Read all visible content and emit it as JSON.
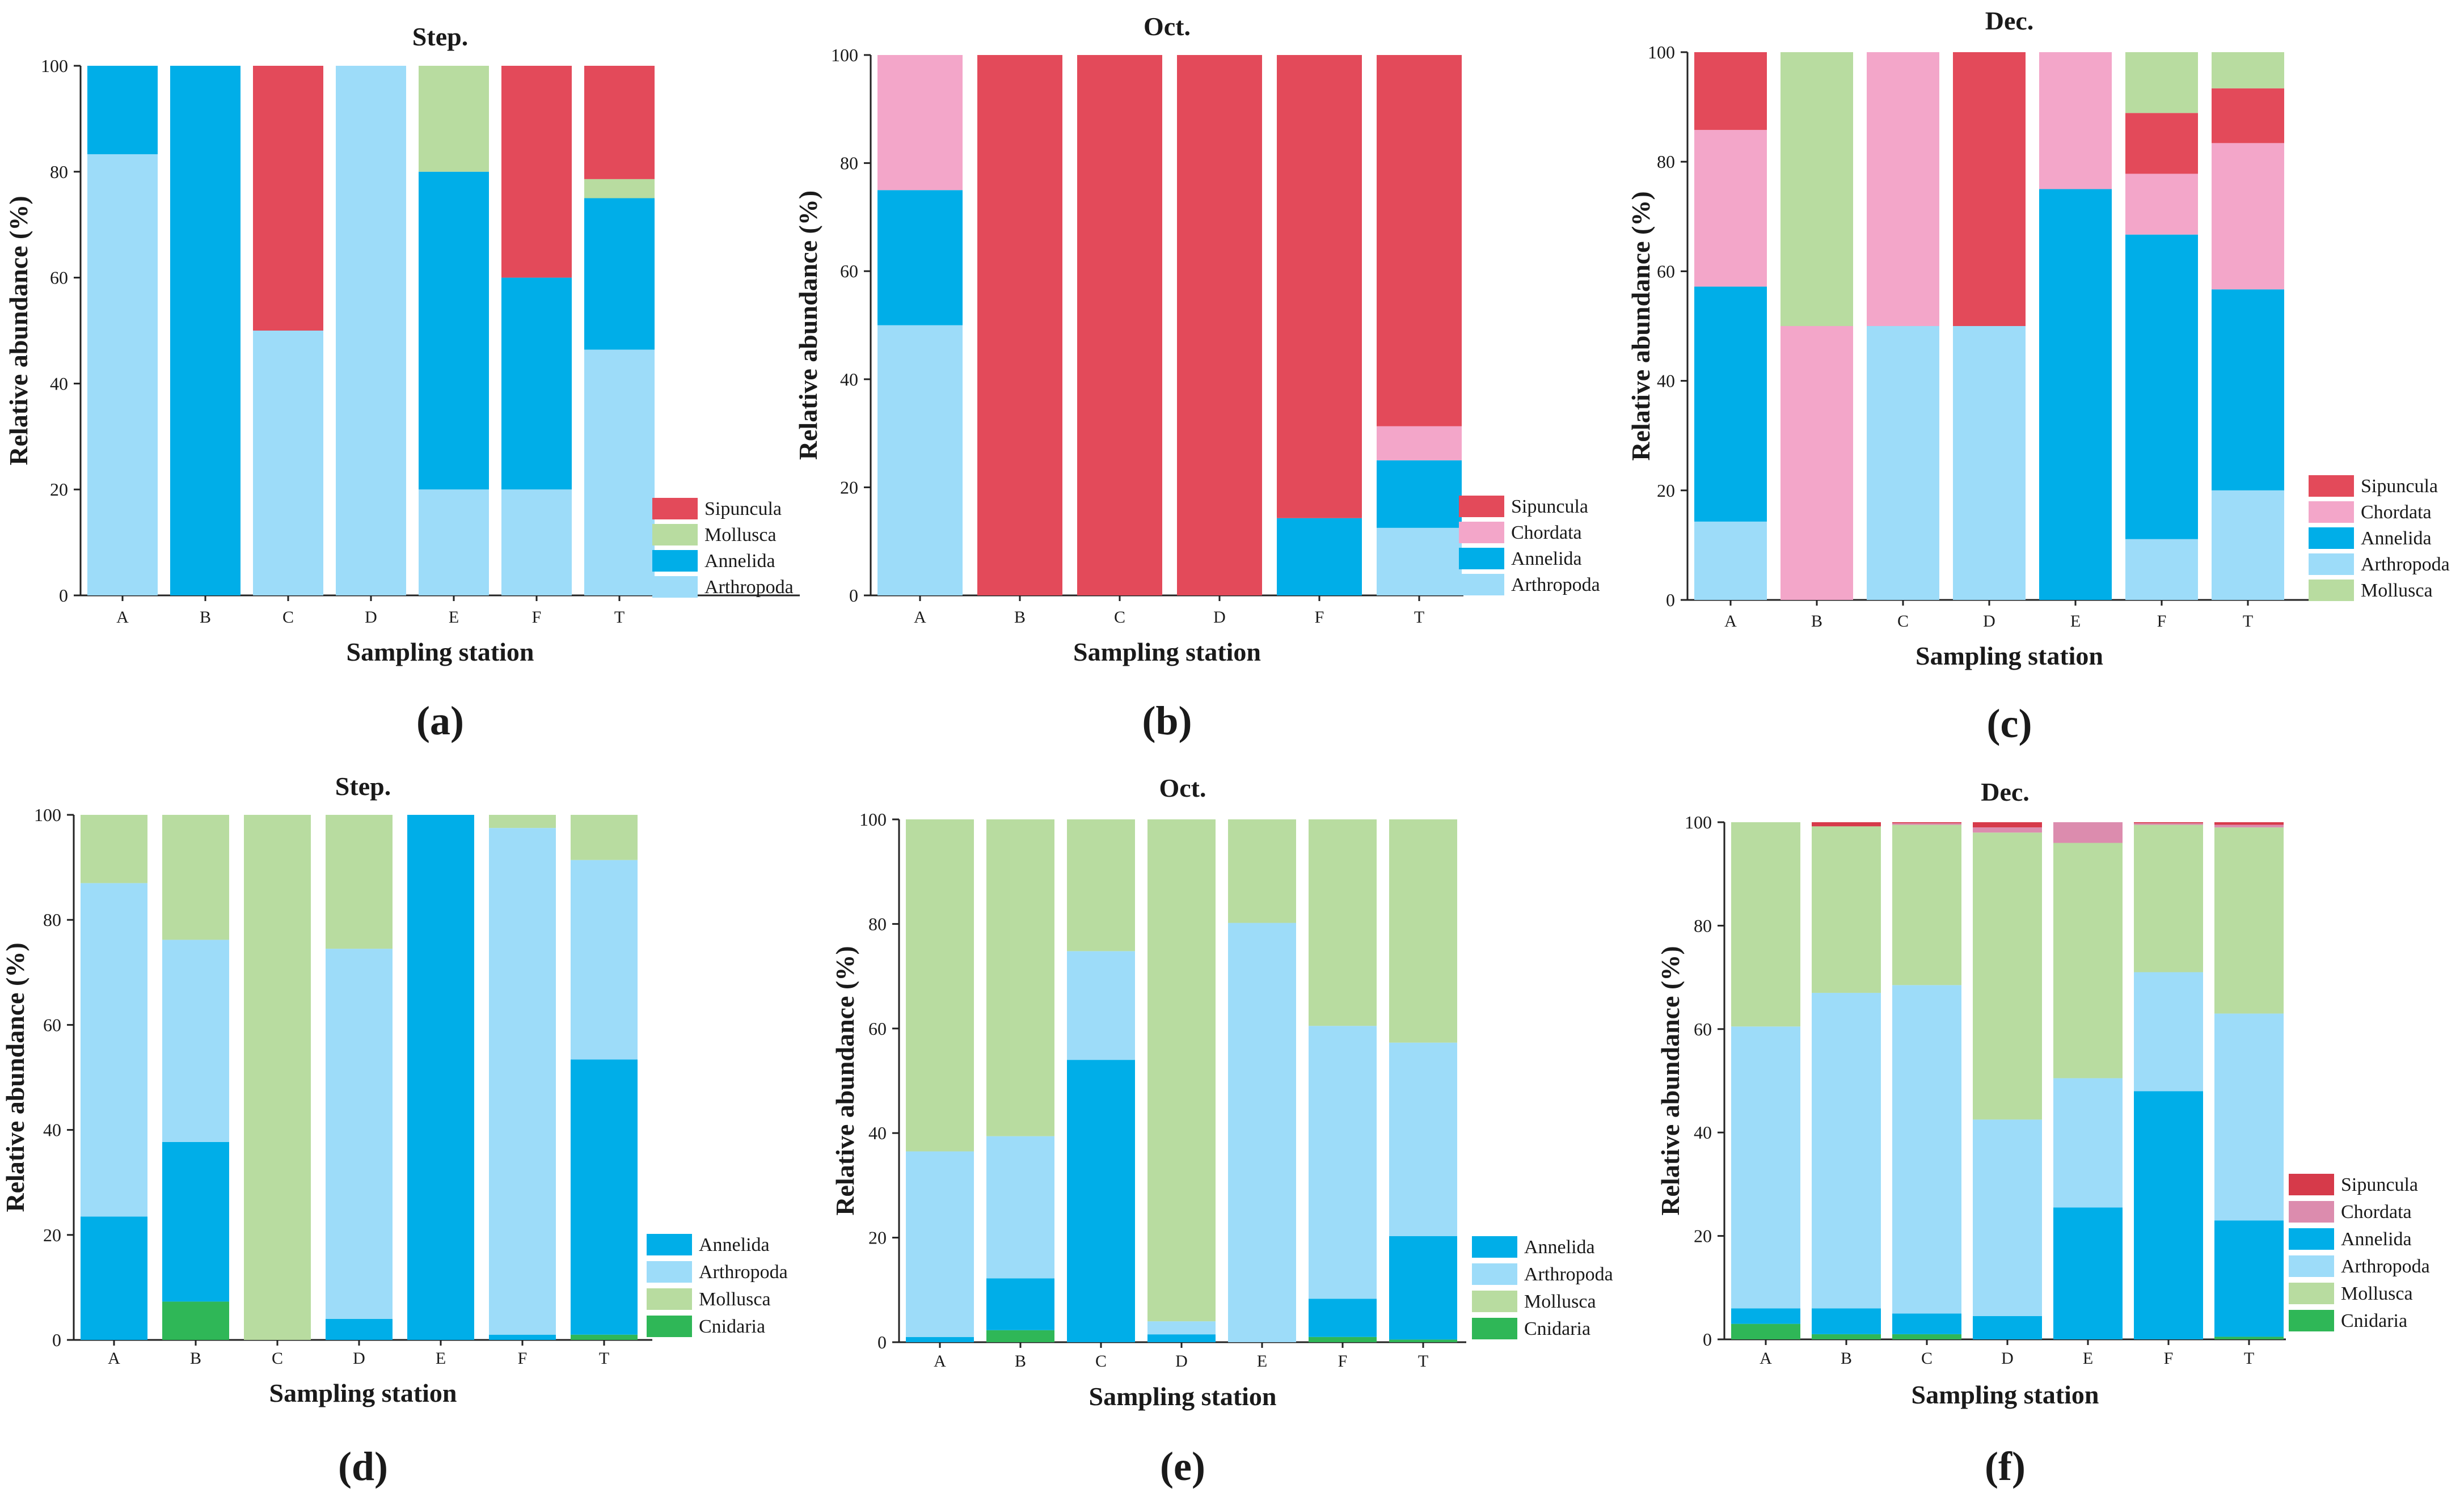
{
  "colors": {
    "Sipuncula": "#e34a5a",
    "Mollusca": "#b8dca0",
    "Annelida": "#00aee8",
    "Arthropoda": "#9ddcf9",
    "Chordata": "#f3a6c9",
    "Cnidaria": "#2fb757",
    "Chordata_f": "#dc8cae",
    "Sipuncula_f": "#d63a4a"
  },
  "chart_data": [
    {
      "type": "bar",
      "stacked": true,
      "panel_label": "(a)",
      "title": "Step.",
      "xlabel": "Sampling station",
      "ylabel": "Relative abundance (%)",
      "ylim": [
        0,
        100
      ],
      "yticks": [
        0,
        20,
        40,
        60,
        80,
        100
      ],
      "categories": [
        "A",
        "B",
        "C",
        "D",
        "E",
        "F",
        "T"
      ],
      "stack_order": [
        "Arthropoda",
        "Annelida",
        "Mollusca",
        "Sipuncula"
      ],
      "legend_order": [
        "Sipuncula",
        "Mollusca",
        "Annelida",
        "Arthropoda"
      ],
      "legend_position": "right-bottom",
      "series": [
        {
          "name": "Arthropoda",
          "values": [
            83.3,
            0,
            50,
            100,
            20,
            20,
            46.4
          ]
        },
        {
          "name": "Annelida",
          "values": [
            16.7,
            100,
            0,
            0,
            60,
            40,
            28.6
          ]
        },
        {
          "name": "Mollusca",
          "values": [
            0,
            0,
            0,
            0,
            20,
            0,
            3.6
          ]
        },
        {
          "name": "Sipuncula",
          "values": [
            0,
            0,
            50,
            0,
            0,
            40,
            21.4
          ]
        }
      ]
    },
    {
      "type": "bar",
      "stacked": true,
      "panel_label": "(b)",
      "title": "Oct.",
      "xlabel": "Sampling station",
      "ylabel": "Relative abundance (%)",
      "ylim": [
        0,
        100
      ],
      "yticks": [
        0,
        20,
        40,
        60,
        80,
        100
      ],
      "categories": [
        "A",
        "B",
        "C",
        "D",
        "F",
        "T"
      ],
      "stack_order": [
        "Arthropoda",
        "Annelida",
        "Chordata",
        "Sipuncula"
      ],
      "legend_order": [
        "Sipuncula",
        "Chordata",
        "Annelida",
        "Arthropoda"
      ],
      "legend_position": "right-bottom",
      "series": [
        {
          "name": "Arthropoda",
          "values": [
            50,
            0,
            0,
            0,
            0,
            12.5
          ]
        },
        {
          "name": "Annelida",
          "values": [
            25,
            0,
            0,
            0,
            14.3,
            12.5
          ]
        },
        {
          "name": "Chordata",
          "values": [
            25,
            0,
            0,
            0,
            0,
            6.3
          ]
        },
        {
          "name": "Sipuncula",
          "values": [
            0,
            100,
            100,
            100,
            85.7,
            68.7
          ]
        }
      ]
    },
    {
      "type": "bar",
      "stacked": true,
      "panel_label": "(c)",
      "title": "Dec.",
      "xlabel": "Sampling station",
      "ylabel": "Relative abundance (%)",
      "ylim": [
        0,
        100
      ],
      "yticks": [
        0,
        20,
        40,
        60,
        80,
        100
      ],
      "categories": [
        "A",
        "B",
        "C",
        "D",
        "E",
        "F",
        "T"
      ],
      "stack_order": [
        "Arthropoda",
        "Annelida",
        "Chordata",
        "Sipuncula",
        "Mollusca"
      ],
      "legend_order": [
        "Sipuncula",
        "Chordata",
        "Annelida",
        "Arthropoda",
        "Mollusca"
      ],
      "legend_position": "right-bottom",
      "series": [
        {
          "name": "Arthropoda",
          "values": [
            14.3,
            0,
            50,
            50,
            0,
            11.1,
            20
          ]
        },
        {
          "name": "Annelida",
          "values": [
            42.9,
            0,
            0,
            0,
            75,
            55.6,
            36.7
          ]
        },
        {
          "name": "Chordata",
          "values": [
            28.6,
            50,
            50,
            0,
            25,
            11.1,
            26.7
          ]
        },
        {
          "name": "Sipuncula",
          "values": [
            14.2,
            0,
            0,
            50,
            0,
            11.1,
            10
          ]
        },
        {
          "name": "Mollusca",
          "values": [
            0,
            50,
            0,
            0,
            0,
            11.1,
            6.6
          ]
        }
      ]
    },
    {
      "type": "bar",
      "stacked": true,
      "panel_label": "(d)",
      "title": "Step.",
      "xlabel": "Sampling station",
      "ylabel": "Relative abundance (%)",
      "ylim": [
        0,
        100
      ],
      "yticks": [
        0,
        20,
        40,
        60,
        80,
        100
      ],
      "categories": [
        "A",
        "B",
        "C",
        "D",
        "E",
        "F",
        "T"
      ],
      "stack_order": [
        "Cnidaria",
        "Annelida",
        "Arthropoda",
        "Mollusca"
      ],
      "legend_order": [
        "Annelida",
        "Arthropoda",
        "Mollusca",
        "Cnidaria"
      ],
      "legend_position": "right-bottom",
      "series": [
        {
          "name": "Cnidaria",
          "values": [
            0,
            7.3,
            0,
            0,
            0,
            0,
            1
          ]
        },
        {
          "name": "Annelida",
          "values": [
            23.5,
            30.4,
            0,
            4,
            100,
            1,
            52.4
          ]
        },
        {
          "name": "Arthropoda",
          "values": [
            63.5,
            38.5,
            0,
            70.5,
            0,
            96.5,
            38
          ]
        },
        {
          "name": "Mollusca",
          "values": [
            13,
            23.8,
            100,
            25.5,
            0,
            2.5,
            8.6
          ]
        }
      ]
    },
    {
      "type": "bar",
      "stacked": true,
      "panel_label": "(e)",
      "title": "Oct.",
      "xlabel": "Sampling station",
      "ylabel": "Relative abundance (%)",
      "ylim": [
        0,
        100
      ],
      "yticks": [
        0,
        20,
        40,
        60,
        80,
        100
      ],
      "categories": [
        "A",
        "B",
        "C",
        "D",
        "E",
        "F",
        "T"
      ],
      "stack_order": [
        "Cnidaria",
        "Annelida",
        "Arthropoda",
        "Mollusca"
      ],
      "legend_order": [
        "Annelida",
        "Arthropoda",
        "Mollusca",
        "Cnidaria"
      ],
      "legend_position": "right-bottom",
      "series": [
        {
          "name": "Cnidaria",
          "values": [
            0,
            2.3,
            0,
            0,
            0,
            1,
            0.5
          ]
        },
        {
          "name": "Annelida",
          "values": [
            1,
            9.9,
            54,
            1.5,
            0,
            7.3,
            19.8
          ]
        },
        {
          "name": "Arthropoda",
          "values": [
            35.5,
            27.2,
            20.8,
            2.5,
            80.2,
            52.2,
            37
          ]
        },
        {
          "name": "Mollusca",
          "values": [
            63.5,
            60.6,
            25.2,
            96,
            19.8,
            39.5,
            42.7
          ]
        }
      ]
    },
    {
      "type": "bar",
      "stacked": true,
      "panel_label": "(f)",
      "title": "Dec.",
      "xlabel": "Sampling station",
      "ylabel": "Relative abundance (%)",
      "ylim": [
        0,
        100
      ],
      "yticks": [
        0,
        20,
        40,
        60,
        80,
        100
      ],
      "categories": [
        "A",
        "B",
        "C",
        "D",
        "E",
        "F",
        "T"
      ],
      "stack_order": [
        "Cnidaria",
        "Annelida",
        "Arthropoda",
        "Mollusca",
        "Chordata",
        "Sipuncula"
      ],
      "legend_order": [
        "Sipuncula",
        "Chordata",
        "Annelida",
        "Arthropoda",
        "Mollusca",
        "Cnidaria"
      ],
      "legend_position": "right-bottom",
      "series": [
        {
          "name": "Cnidaria",
          "values": [
            3,
            1,
            1,
            0,
            0,
            0,
            0.5
          ]
        },
        {
          "name": "Annelida",
          "values": [
            3,
            5,
            4,
            4.5,
            25.5,
            48,
            22.5
          ]
        },
        {
          "name": "Arthropoda",
          "values": [
            54.5,
            61,
            63.5,
            38,
            25,
            23,
            40
          ]
        },
        {
          "name": "Mollusca",
          "values": [
            39.5,
            32.2,
            31,
            55.5,
            45.5,
            28.5,
            36
          ]
        },
        {
          "name": "Chordata",
          "values": [
            0,
            0,
            0.3,
            1,
            4,
            0.3,
            0.5
          ]
        },
        {
          "name": "Sipuncula",
          "values": [
            0,
            0.8,
            0.2,
            1,
            0,
            0.2,
            0.5
          ]
        }
      ]
    }
  ]
}
